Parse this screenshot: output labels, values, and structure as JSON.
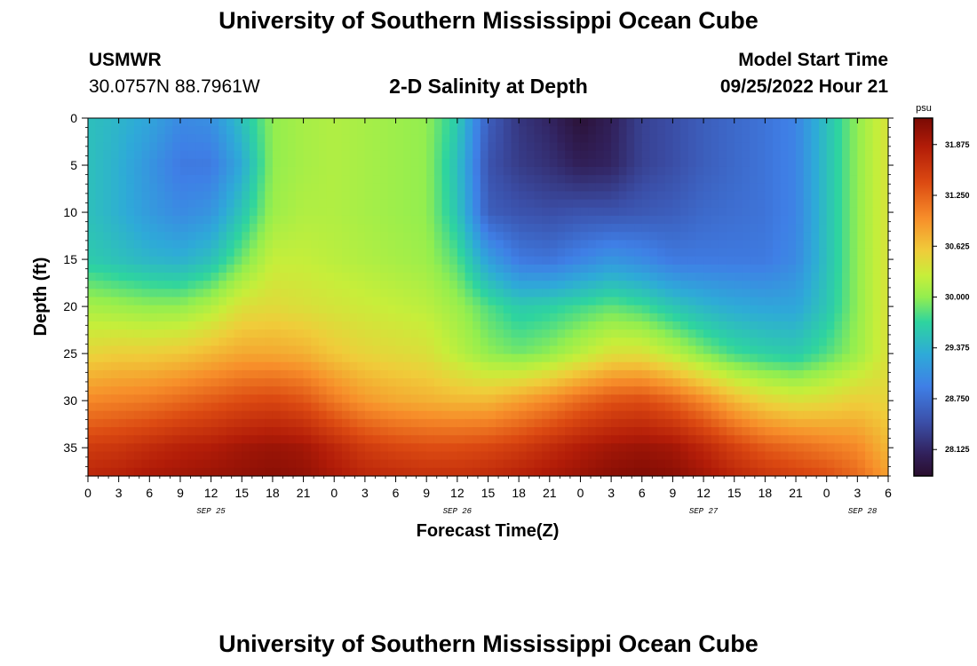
{
  "header": {
    "title": "University of Southern Mississippi Ocean Cube",
    "station": "USMWR",
    "coords": "30.0757N  88.7961W",
    "subtitle": "2-D Salinity at Depth",
    "model_label": "Model Start Time",
    "model_time": "09/25/2022 Hour 21"
  },
  "footer": {
    "title": "University of Southern Mississippi Ocean Cube"
  },
  "chart_data": {
    "type": "heatmap",
    "title": "2-D Salinity at Depth",
    "xlabel": "Forecast Time(Z)",
    "ylabel": "Depth (ft)",
    "x_hours_range": [
      0,
      78
    ],
    "x_ticks": [
      {
        "h": 0,
        "label": "0"
      },
      {
        "h": 3,
        "label": "3"
      },
      {
        "h": 6,
        "label": "6"
      },
      {
        "h": 9,
        "label": "9"
      },
      {
        "h": 12,
        "label": "12"
      },
      {
        "h": 15,
        "label": "15"
      },
      {
        "h": 18,
        "label": "18"
      },
      {
        "h": 21,
        "label": "21"
      },
      {
        "h": 24,
        "label": "0"
      },
      {
        "h": 27,
        "label": "3"
      },
      {
        "h": 30,
        "label": "6"
      },
      {
        "h": 33,
        "label": "9"
      },
      {
        "h": 36,
        "label": "12"
      },
      {
        "h": 39,
        "label": "15"
      },
      {
        "h": 42,
        "label": "18"
      },
      {
        "h": 45,
        "label": "21"
      },
      {
        "h": 48,
        "label": "0"
      },
      {
        "h": 51,
        "label": "3"
      },
      {
        "h": 54,
        "label": "6"
      },
      {
        "h": 57,
        "label": "9"
      },
      {
        "h": 60,
        "label": "12"
      },
      {
        "h": 63,
        "label": "15"
      },
      {
        "h": 66,
        "label": "18"
      },
      {
        "h": 69,
        "label": "21"
      },
      {
        "h": 72,
        "label": "0"
      },
      {
        "h": 75,
        "label": "3"
      },
      {
        "h": 78,
        "label": "6"
      }
    ],
    "date_labels": [
      {
        "h": 12,
        "label": "SEP 25"
      },
      {
        "h": 36,
        "label": "SEP 26"
      },
      {
        "h": 60,
        "label": "SEP 27"
      },
      {
        "h": 75.5,
        "label": "SEP 28"
      }
    ],
    "ylim": [
      0,
      38
    ],
    "y_ticks": [
      0,
      5,
      10,
      15,
      20,
      25,
      30,
      35
    ],
    "depths_ft": [
      0,
      5,
      10,
      15,
      20,
      25,
      30,
      35,
      38
    ],
    "times_h": [
      0,
      3,
      6,
      9,
      12,
      15,
      18,
      21,
      24,
      27,
      30,
      33,
      36,
      39,
      42,
      45,
      48,
      51,
      54,
      57,
      60,
      63,
      66,
      69,
      72,
      75,
      78
    ],
    "salinity_psu": [
      [
        29.5,
        29.4,
        29.25,
        29.0,
        29.05,
        29.5,
        30.0,
        30.1,
        30.15,
        30.1,
        30.05,
        30.0,
        29.6,
        28.6,
        28.25,
        28.1,
        27.85,
        28.05,
        28.35,
        28.45,
        28.6,
        28.7,
        28.8,
        28.95,
        29.5,
        30.0,
        30.4
      ],
      [
        29.5,
        29.35,
        29.1,
        28.85,
        28.85,
        29.3,
        30.0,
        30.1,
        30.15,
        30.1,
        30.05,
        30.0,
        29.5,
        28.5,
        28.3,
        28.2,
        28.05,
        28.1,
        28.35,
        28.45,
        28.6,
        28.7,
        28.8,
        28.95,
        29.5,
        30.0,
        30.4
      ],
      [
        29.5,
        29.35,
        29.15,
        29.0,
        29.1,
        29.55,
        30.05,
        30.15,
        30.15,
        30.1,
        30.05,
        30.0,
        29.55,
        28.6,
        28.5,
        28.45,
        28.5,
        28.5,
        28.55,
        28.6,
        28.7,
        28.75,
        28.8,
        28.95,
        29.5,
        30.0,
        30.4
      ],
      [
        29.6,
        29.5,
        29.4,
        29.35,
        29.5,
        29.9,
        30.25,
        30.25,
        30.2,
        30.15,
        30.1,
        30.05,
        29.8,
        29.2,
        28.85,
        28.8,
        28.95,
        29.1,
        29.0,
        28.85,
        28.85,
        28.85,
        28.85,
        29.0,
        29.5,
        30.0,
        30.4
      ],
      [
        30.1,
        30.05,
        30.0,
        30.0,
        30.15,
        30.4,
        30.45,
        30.4,
        30.35,
        30.3,
        30.25,
        30.2,
        30.05,
        29.8,
        29.6,
        29.65,
        29.75,
        29.85,
        29.75,
        29.55,
        29.4,
        29.3,
        29.25,
        29.25,
        29.55,
        30.0,
        30.4
      ],
      [
        30.5,
        30.55,
        30.55,
        30.6,
        30.7,
        30.8,
        30.8,
        30.75,
        30.6,
        30.5,
        30.45,
        30.4,
        30.2,
        30.0,
        29.9,
        30.0,
        30.2,
        30.4,
        30.4,
        30.2,
        29.95,
        29.75,
        29.65,
        29.6,
        29.8,
        30.05,
        30.4
      ],
      [
        31.0,
        31.05,
        31.1,
        31.2,
        31.3,
        31.4,
        31.45,
        31.35,
        31.1,
        30.9,
        30.8,
        30.75,
        30.7,
        30.7,
        30.85,
        31.0,
        31.2,
        31.35,
        31.4,
        31.25,
        31.0,
        30.7,
        30.5,
        30.4,
        30.45,
        30.55,
        30.5
      ],
      [
        31.55,
        31.6,
        31.7,
        31.8,
        31.85,
        31.95,
        32.0,
        31.95,
        31.75,
        31.55,
        31.45,
        31.4,
        31.4,
        31.45,
        31.55,
        31.7,
        31.85,
        31.95,
        32.0,
        31.95,
        31.75,
        31.5,
        31.3,
        31.2,
        31.1,
        31.0,
        30.7
      ],
      [
        31.75,
        31.8,
        31.9,
        31.95,
        32.0,
        32.05,
        32.1,
        32.05,
        31.9,
        31.75,
        31.7,
        31.65,
        31.65,
        31.7,
        31.8,
        31.9,
        32.0,
        32.1,
        32.15,
        32.1,
        31.95,
        31.75,
        31.6,
        31.5,
        31.4,
        31.2,
        30.85
      ]
    ],
    "colorbar": {
      "unit": "psu",
      "range": [
        27.8,
        32.2
      ],
      "ticks": [
        "31.875",
        "31.250",
        "30.625",
        "30.000",
        "29.375",
        "28.750",
        "28.125"
      ]
    }
  }
}
